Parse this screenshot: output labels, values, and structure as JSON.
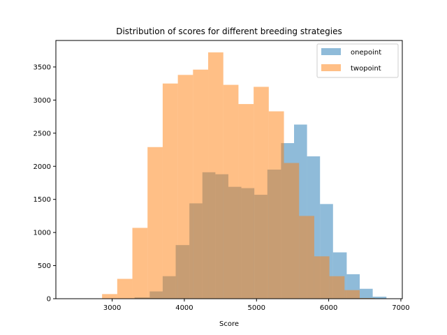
{
  "chart_data": {
    "type": "bar",
    "title": "Distribution of scores for different breeding strategies",
    "xlabel": "Score",
    "ylabel": "",
    "xlim": [
      2220,
      7020
    ],
    "ylim": [
      0,
      3900
    ],
    "xticks": [
      3000,
      4000,
      5000,
      6000,
      7000
    ],
    "yticks": [
      0,
      500,
      1000,
      1500,
      2000,
      2500,
      3000,
      3500
    ],
    "legend_position": "top-right",
    "alpha": 0.5,
    "series": [
      {
        "name": "onepoint",
        "color": "#1f77b4",
        "bins": [
          {
            "x0": 3310,
            "x1": 3520,
            "value": 20
          },
          {
            "x0": 3520,
            "x1": 3700,
            "value": 110
          },
          {
            "x0": 3700,
            "x1": 3880,
            "value": 340
          },
          {
            "x0": 3880,
            "x1": 4070,
            "value": 810
          },
          {
            "x0": 4070,
            "x1": 4250,
            "value": 1440
          },
          {
            "x0": 4250,
            "x1": 4430,
            "value": 1910
          },
          {
            "x0": 4430,
            "x1": 4610,
            "value": 1880
          },
          {
            "x0": 4610,
            "x1": 4790,
            "value": 1690
          },
          {
            "x0": 4790,
            "x1": 4970,
            "value": 1670
          },
          {
            "x0": 4970,
            "x1": 5150,
            "value": 1570
          },
          {
            "x0": 5150,
            "x1": 5340,
            "value": 1950
          },
          {
            "x0": 5340,
            "x1": 5520,
            "value": 2350
          },
          {
            "x0": 5520,
            "x1": 5700,
            "value": 2630
          },
          {
            "x0": 5700,
            "x1": 5880,
            "value": 2150
          },
          {
            "x0": 5880,
            "x1": 6060,
            "value": 1430
          },
          {
            "x0": 6060,
            "x1": 6250,
            "value": 700
          },
          {
            "x0": 6250,
            "x1": 6430,
            "value": 370
          },
          {
            "x0": 6430,
            "x1": 6610,
            "value": 150
          },
          {
            "x0": 6610,
            "x1": 6800,
            "value": 30
          }
        ]
      },
      {
        "name": "twopoint",
        "color": "#ff7f0e",
        "bins": [
          {
            "x0": 2860,
            "x1": 3070,
            "value": 70
          },
          {
            "x0": 3070,
            "x1": 3280,
            "value": 300
          },
          {
            "x0": 3280,
            "x1": 3490,
            "value": 1070
          },
          {
            "x0": 3490,
            "x1": 3700,
            "value": 2290
          },
          {
            "x0": 3700,
            "x1": 3910,
            "value": 3250
          },
          {
            "x0": 3910,
            "x1": 4120,
            "value": 3380
          },
          {
            "x0": 4120,
            "x1": 4330,
            "value": 3460
          },
          {
            "x0": 4330,
            "x1": 4540,
            "value": 3720
          },
          {
            "x0": 4540,
            "x1": 4750,
            "value": 3230
          },
          {
            "x0": 4750,
            "x1": 4960,
            "value": 2940
          },
          {
            "x0": 4960,
            "x1": 5170,
            "value": 3200
          },
          {
            "x0": 5170,
            "x1": 5380,
            "value": 2830
          },
          {
            "x0": 5380,
            "x1": 5590,
            "value": 2050
          },
          {
            "x0": 5590,
            "x1": 5800,
            "value": 1250
          },
          {
            "x0": 5800,
            "x1": 6010,
            "value": 640
          },
          {
            "x0": 6010,
            "x1": 6220,
            "value": 340
          },
          {
            "x0": 6220,
            "x1": 6430,
            "value": 130
          },
          {
            "x0": 6430,
            "x1": 6640,
            "value": 10
          }
        ]
      }
    ]
  }
}
